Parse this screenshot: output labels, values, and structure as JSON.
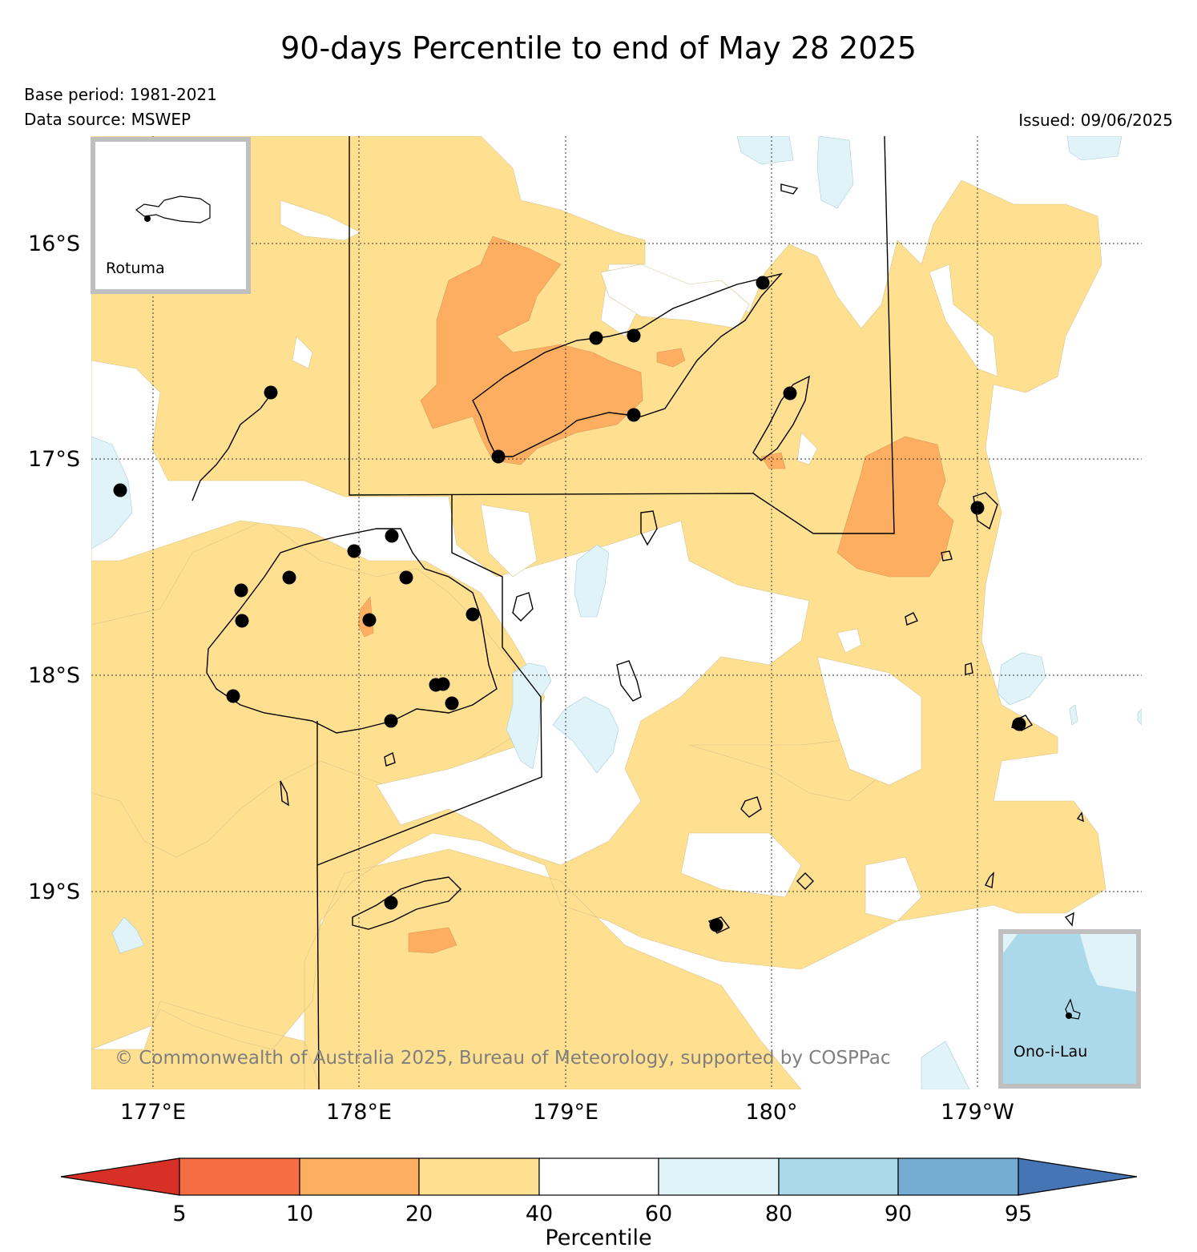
{
  "title": "90-days Percentile to end of May 28 2025",
  "base_period": "Base period: 1981-2021",
  "data_source": "Data source: MSWEP",
  "issued": "Issued: 09/06/2025",
  "credit": "© Commonwealth of Australia 2025, Bureau of Meteorology, supported by COSPPac",
  "axes": {
    "lat_ticks": [
      "16°S",
      "17°S",
      "18°S",
      "19°S"
    ],
    "lon_ticks": [
      "177°E",
      "178°E",
      "179°E",
      "180°",
      "179°W"
    ]
  },
  "insets": {
    "rotuma": "Rotuma",
    "ono_i_lau": "Ono-i-Lau"
  },
  "colorbar": {
    "label": "Percentile",
    "boundaries": [
      "5",
      "10",
      "20",
      "40",
      "60",
      "80",
      "90",
      "95"
    ],
    "colors": [
      "#d73027",
      "#f46d43",
      "#fdae61",
      "#fee090",
      "#ffffff",
      "#e0f3f8",
      "#abd9e9",
      "#74add1",
      "#4575b4"
    ]
  },
  "colors": {
    "p20_40": "#fee090",
    "p10_20": "#fdae61",
    "p60_80": "#e0f3f8",
    "p80_90": "#abd9e9",
    "inset_frame": "#bfbfbf"
  }
}
